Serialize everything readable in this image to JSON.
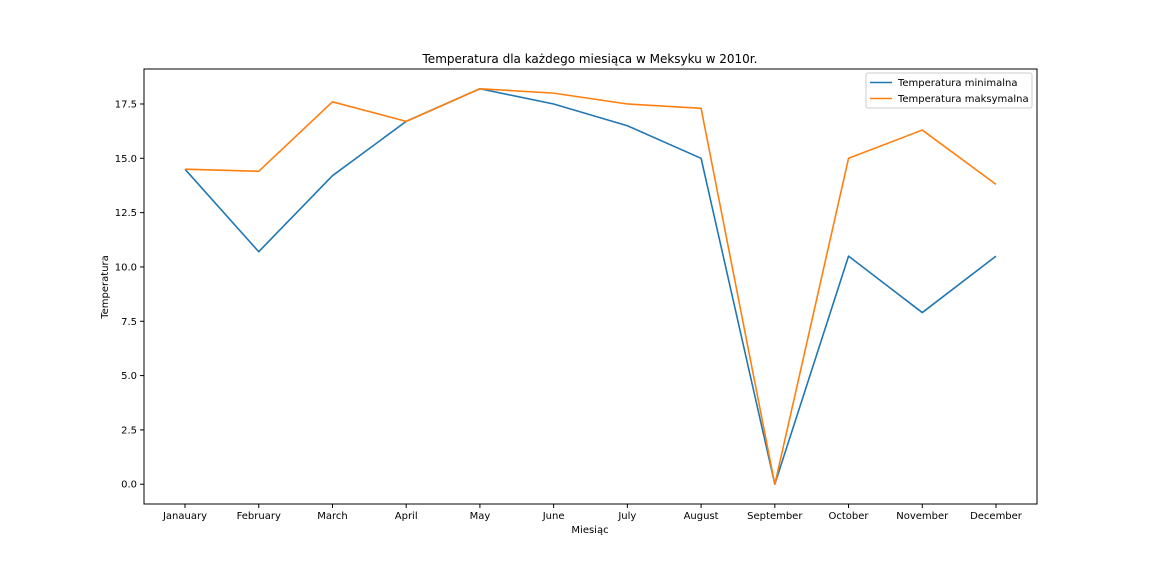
{
  "chart_data": {
    "type": "line",
    "title": "Temperatura dla każdego miesiąca w Meksyku w 2010r.",
    "xlabel": "Miesiąc",
    "ylabel": "Temperatura",
    "categories": [
      "Janauary",
      "February",
      "March",
      "April",
      "May",
      "June",
      "July",
      "August",
      "September",
      "October",
      "November",
      "December"
    ],
    "series": [
      {
        "name": "Temperatura minimalna",
        "color": "#1f77b4",
        "values": [
          14.5,
          10.7,
          14.2,
          16.7,
          18.2,
          17.5,
          16.5,
          15.0,
          0.0,
          10.5,
          7.9,
          10.5
        ]
      },
      {
        "name": "Temperatura maksymalna",
        "color": "#ff7f0e",
        "values": [
          14.5,
          14.4,
          17.6,
          16.7,
          18.2,
          18.0,
          17.5,
          17.3,
          0.0,
          15.0,
          16.3,
          13.8
        ]
      }
    ],
    "yticks": [
      "0.0",
      "2.5",
      "5.0",
      "7.5",
      "10.0",
      "12.5",
      "15.0",
      "17.5"
    ],
    "ylim": [
      -0.91,
      19.11
    ],
    "grid": false,
    "legend_position": "top-right"
  }
}
